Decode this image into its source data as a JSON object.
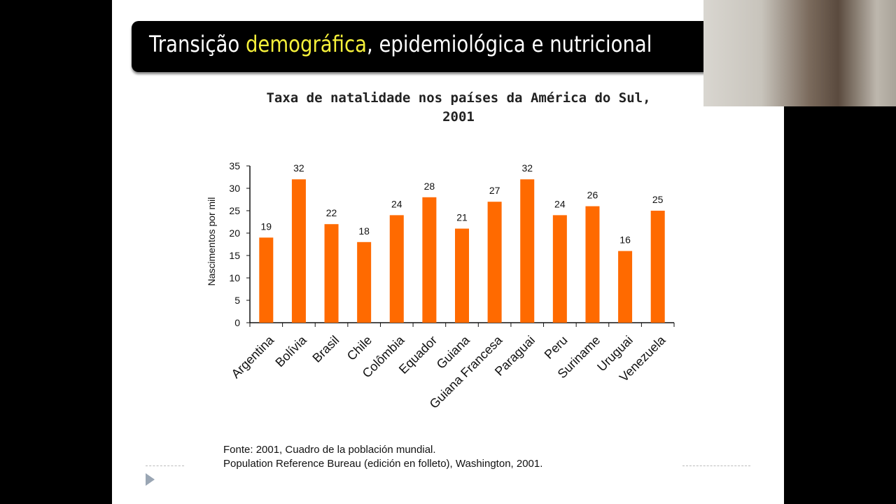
{
  "slide": {
    "title_before": "Transição ",
    "title_highlight": "demográfica",
    "title_after": ", epidemiológica e nutricional"
  },
  "source": {
    "line1": "Fonte: 2001, Cuadro de la población mundial.",
    "line2": "Population Reference Bureau (edición en folleto), Washington, 2001."
  },
  "chart_data": {
    "type": "bar",
    "title_line1": "Taxa de natalidade nos países da América do Sul,",
    "title_line2": "2001",
    "ylabel": "Nascimentos por mil",
    "xlabel": "",
    "ylim": [
      0,
      35
    ],
    "yticks": [
      0,
      5,
      10,
      15,
      20,
      25,
      30,
      35
    ],
    "grid": false,
    "bar_color": "#ff6a00",
    "categories": [
      "Argentina",
      "Bolívia",
      "Brasil",
      "Chile",
      "Colômbia",
      "Equador",
      "Guiana",
      "Guiana Francesa",
      "Paraguai",
      "Peru",
      "Suriname",
      "Uruguai",
      "Venezuela"
    ],
    "values": [
      19,
      32,
      22,
      18,
      24,
      28,
      21,
      27,
      32,
      24,
      26,
      16,
      25
    ]
  }
}
